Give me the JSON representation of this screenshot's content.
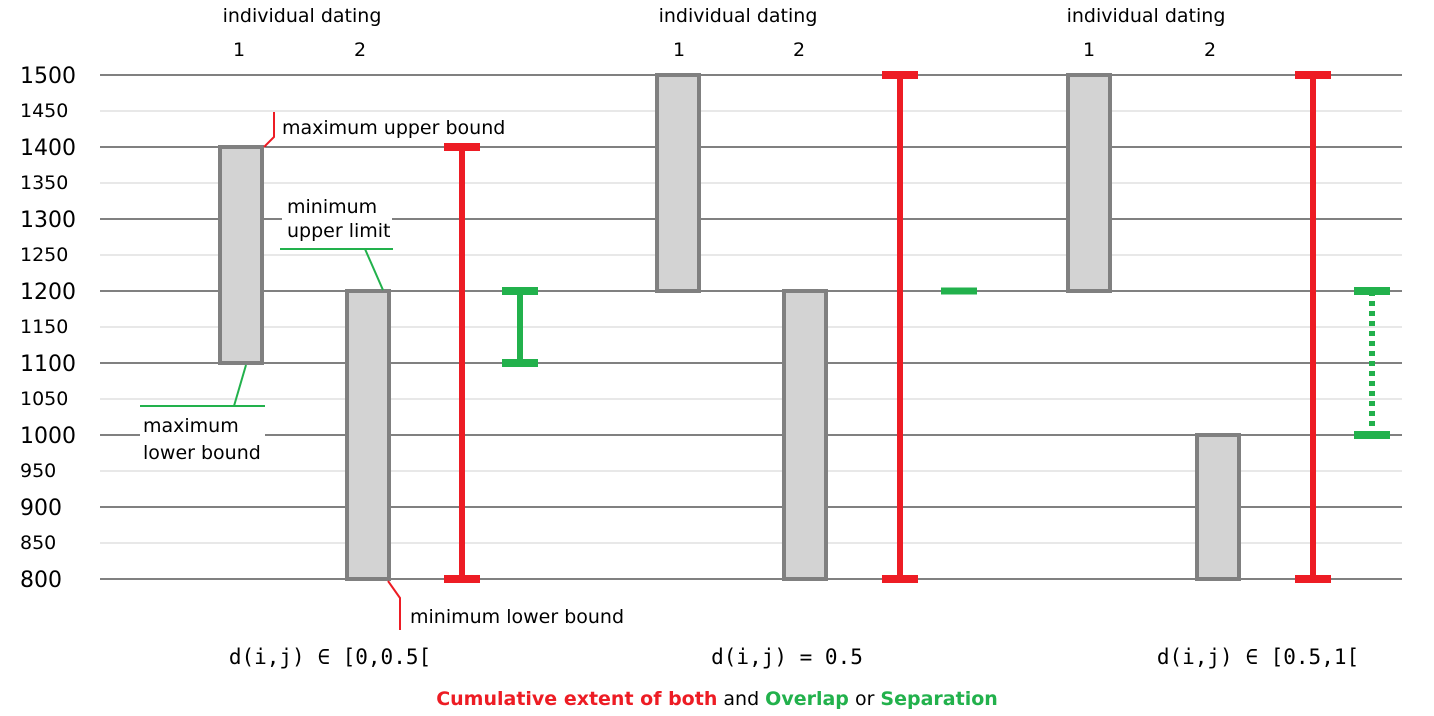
{
  "chart_data": {
    "type": "range-diagram",
    "y_ticks": [
      "1500",
      "1450",
      "1400",
      "1350",
      "1300",
      "1250",
      "1200",
      "1150",
      "1100",
      "1050",
      "1000",
      "950",
      "900",
      "850",
      "800"
    ],
    "ylim": [
      800,
      1500
    ],
    "colors": {
      "interval_fill": "#d3d3d3",
      "interval_stroke": "#808080",
      "cumulative": "#ed1c24",
      "overlap": "#22b14c"
    },
    "panels": [
      {
        "header": "individual dating",
        "labels": [
          "1",
          "2"
        ],
        "intervals": [
          {
            "label": "1",
            "from": 1100,
            "to": 1400
          },
          {
            "label": "2",
            "from": 800,
            "to": 1200
          }
        ],
        "cumulative": {
          "from": 800,
          "to": 1400
        },
        "relation": {
          "kind": "overlap",
          "from": 1100,
          "to": 1200
        },
        "measure": "d(i,j) ∈ [0,0.5["
      },
      {
        "header": "individual dating",
        "labels": [
          "1",
          "2"
        ],
        "intervals": [
          {
            "label": "1",
            "from": 1200,
            "to": 1500
          },
          {
            "label": "2",
            "from": 800,
            "to": 1200
          }
        ],
        "cumulative": {
          "from": 800,
          "to": 1500
        },
        "relation": {
          "kind": "touch",
          "from": 1200,
          "to": 1200
        },
        "measure": "d(i,j)  = 0.5"
      },
      {
        "header": "individual dating",
        "labels": [
          "1",
          "2"
        ],
        "intervals": [
          {
            "label": "1",
            "from": 1200,
            "to": 1500
          },
          {
            "label": "2",
            "from": 800,
            "to": 1000
          }
        ],
        "cumulative": {
          "from": 800,
          "to": 1500
        },
        "relation": {
          "kind": "separation",
          "from": 1000,
          "to": 1200
        },
        "measure": "d(i,j) ∈ [0.5,1["
      }
    ],
    "annotations": {
      "max_upper": "maximum upper bound",
      "min_upper_1": "minimum",
      "min_upper_2": "upper limit",
      "max_lower_1": "maximum",
      "max_lower_2": "lower bound",
      "min_lower": "minimum lower bound"
    },
    "caption": {
      "part1": "Cumulative extent of both",
      "part2": " and ",
      "part3": "Overlap",
      "part4": " or ",
      "part5": "Separation"
    }
  }
}
